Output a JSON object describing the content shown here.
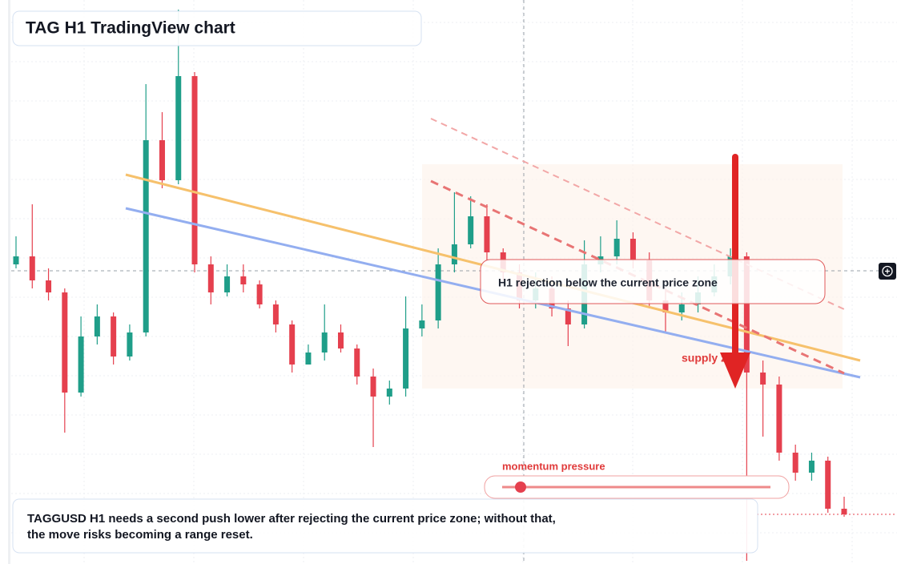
{
  "chart_data": {
    "type": "candlestick",
    "title": "TAG H1 TradingView chart",
    "annotation": "H1 rejection below the current price zone",
    "zone_label": "supply zone",
    "meter_label": "momentum pressure",
    "note": [
      "TAGGUSD H1 needs a second push lower after rejecting the current price zone; without that,",
      "the move risks becoming a range reset."
    ],
    "up_color": "#1f9e89",
    "down_color": "#e5404e",
    "ylim": [
      0,
      704
    ],
    "open": [
      374,
      384,
      354,
      339,
      214,
      284,
      309,
      259,
      289,
      529,
      479,
      609,
      374,
      339,
      359,
      349,
      324,
      299,
      249,
      264,
      289,
      269,
      234,
      209,
      219,
      294,
      304,
      374,
      399,
      434,
      389,
      364,
      329,
      344,
      319,
      299,
      374,
      384,
      406,
      379,
      329,
      314,
      324,
      339,
      359,
      384,
      239,
      224,
      139,
      114,
      129,
      69
    ],
    "high": [
      409,
      449,
      369,
      344,
      309,
      324,
      314,
      299,
      599,
      564,
      692,
      614,
      384,
      374,
      374,
      354,
      329,
      304,
      274,
      324,
      299,
      274,
      244,
      229,
      334,
      324,
      394,
      464,
      459,
      449,
      394,
      374,
      364,
      359,
      329,
      404,
      409,
      429,
      414,
      389,
      344,
      339,
      359,
      374,
      394,
      389,
      254,
      234,
      149,
      139,
      134,
      84
    ],
    "low": [
      369,
      344,
      329,
      164,
      209,
      274,
      249,
      254,
      284,
      469,
      474,
      364,
      324,
      334,
      339,
      319,
      289,
      239,
      249,
      254,
      264,
      224,
      146,
      199,
      209,
      284,
      294,
      364,
      394,
      379,
      354,
      319,
      319,
      309,
      272,
      294,
      364,
      374,
      369,
      319,
      289,
      304,
      314,
      334,
      349,
      4,
      159,
      129,
      104,
      104,
      64,
      59
    ],
    "close": [
      384,
      354,
      339,
      214,
      284,
      309,
      259,
      289,
      529,
      479,
      609,
      374,
      339,
      359,
      349,
      324,
      299,
      249,
      264,
      289,
      269,
      234,
      209,
      219,
      294,
      304,
      374,
      399,
      434,
      389,
      364,
      329,
      344,
      319,
      299,
      374,
      384,
      406,
      379,
      329,
      314,
      324,
      339,
      359,
      384,
      239,
      224,
      139,
      114,
      129,
      69,
      62
    ]
  }
}
